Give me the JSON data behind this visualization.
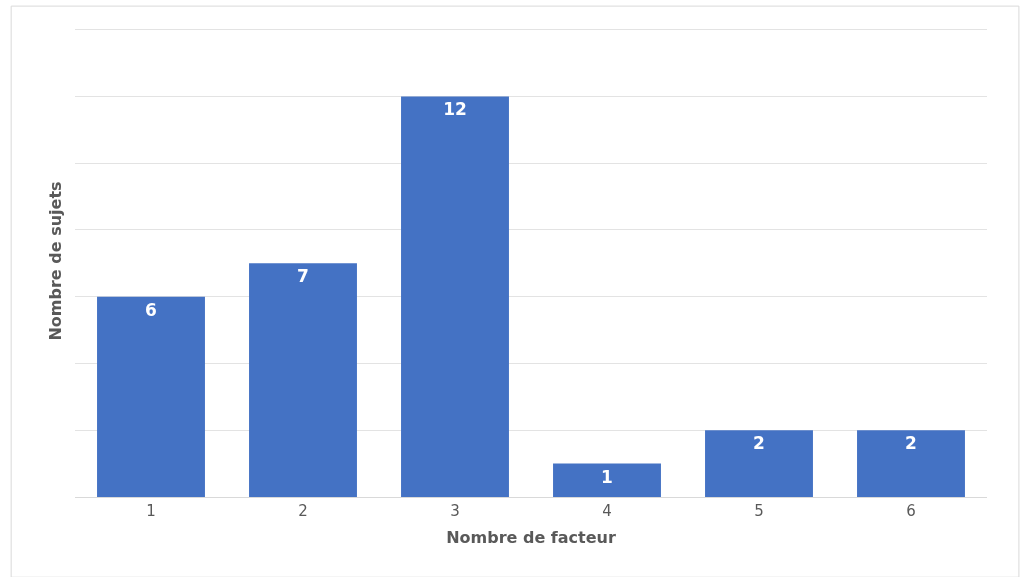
{
  "chart_data": {
    "type": "bar",
    "xlabel": "Nombre de facteur",
    "ylabel": "Nombre de sujets",
    "categories": [
      "1",
      "2",
      "3",
      "4",
      "5",
      "6"
    ],
    "values": [
      6,
      7,
      12,
      1,
      2,
      2
    ],
    "color": "#4472c4",
    "yticks": [
      {
        "value": 0,
        "label": null
      },
      {
        "value": 2,
        "label": null
      },
      {
        "value": 4,
        "label": null
      },
      {
        "value": 6,
        "label": null
      },
      {
        "value": 8,
        "label": null
      },
      {
        "value": 10,
        "label": null
      },
      {
        "value": 12,
        "label": null
      },
      {
        "value": 14,
        "label": null
      }
    ],
    "grid": "y",
    "data_labels": true,
    "tick_labels": "x",
    "legend": false
  }
}
